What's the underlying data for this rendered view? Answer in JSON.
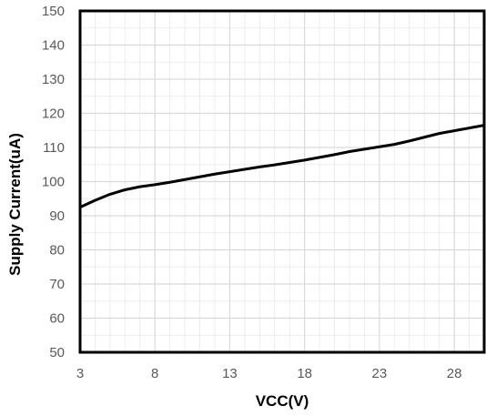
{
  "chart_data": {
    "type": "line",
    "title": "",
    "xlabel": "VCC(V)",
    "ylabel": "Supply Current(uA)",
    "xlim": [
      3,
      30
    ],
    "ylim": [
      50,
      150
    ],
    "x_ticks": [
      3,
      8,
      13,
      18,
      23,
      28
    ],
    "y_ticks": [
      50,
      60,
      70,
      80,
      90,
      100,
      110,
      120,
      130,
      140,
      150
    ],
    "x_minor_step": 1,
    "y_minor_step": 5,
    "grid": true,
    "legend": "none",
    "colors": {
      "line": "#000000",
      "grid": "#d9d9d9",
      "frame": "#000000",
      "tick_text": "#595959"
    },
    "series": [
      {
        "x": [
          3,
          4,
          5,
          6,
          7,
          8,
          9,
          10,
          11,
          12,
          13,
          14,
          15,
          16,
          17,
          18,
          19,
          20,
          21,
          22,
          23,
          24,
          25,
          26,
          27,
          28,
          29,
          30
        ],
        "values": [
          92.5,
          94.5,
          96.3,
          97.6,
          98.5,
          99.1,
          99.8,
          100.6,
          101.4,
          102.2,
          102.9,
          103.6,
          104.3,
          104.9,
          105.6,
          106.3,
          107.1,
          107.9,
          108.8,
          109.5,
          110.2,
          110.9,
          111.9,
          113.0,
          114.1,
          114.9,
          115.7,
          116.5
        ]
      }
    ]
  }
}
